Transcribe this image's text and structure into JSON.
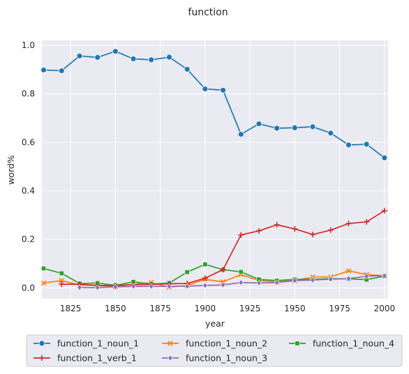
{
  "chart_data": {
    "type": "line",
    "title": "function",
    "xlabel": "year",
    "ylabel": "word%",
    "xlim": [
      1809,
      2002
    ],
    "ylim": [
      -0.045,
      1.02
    ],
    "x_ticks": [
      1825,
      1850,
      1875,
      1900,
      1925,
      1950,
      1975,
      2000
    ],
    "y_ticks": [
      0.0,
      0.2,
      0.4,
      0.6,
      0.8,
      1.0
    ],
    "grid": true,
    "legend_position": "bottom",
    "series": [
      {
        "name": "function_1_noun_1",
        "color": "#1f77b4",
        "marker": "circle",
        "x": [
          1810,
          1820,
          1830,
          1840,
          1850,
          1860,
          1870,
          1880,
          1890,
          1900,
          1910,
          1920,
          1930,
          1940,
          1950,
          1960,
          1970,
          1980,
          1990,
          2000
        ],
        "y": [
          0.898,
          0.895,
          0.956,
          0.95,
          0.975,
          0.944,
          0.94,
          0.951,
          0.901,
          0.82,
          0.815,
          0.633,
          0.676,
          0.658,
          0.66,
          0.664,
          0.638,
          0.589,
          0.592,
          0.536
        ]
      },
      {
        "name": "function_1_noun_2",
        "color": "#ff7f0e",
        "marker": "x",
        "x": [
          1810,
          1820,
          1830,
          1840,
          1850,
          1860,
          1870,
          1880,
          1890,
          1900,
          1910,
          1920,
          1930,
          1940,
          1950,
          1960,
          1970,
          1980,
          1990,
          2000
        ],
        "y": [
          0.02,
          0.03,
          0.012,
          0.01,
          0.005,
          0.015,
          0.022,
          0.003,
          0.01,
          0.035,
          0.025,
          0.055,
          0.03,
          0.025,
          0.03,
          0.045,
          0.045,
          0.07,
          0.055,
          0.05
        ]
      },
      {
        "name": "function_1_noun_4",
        "color": "#2ca02c",
        "marker": "square",
        "x": [
          1810,
          1820,
          1830,
          1840,
          1850,
          1860,
          1870,
          1880,
          1890,
          1900,
          1910,
          1920,
          1930,
          1940,
          1950,
          1960,
          1970,
          1980,
          1990,
          2000
        ],
        "y": [
          0.08,
          0.06,
          0.018,
          0.02,
          0.01,
          0.025,
          0.015,
          0.02,
          0.065,
          0.097,
          0.075,
          0.066,
          0.035,
          0.03,
          0.035,
          0.035,
          0.038,
          0.037,
          0.034,
          0.048
        ]
      },
      {
        "name": "function_1_verb_1",
        "color": "#d62728",
        "marker": "plus",
        "x": [
          1820,
          1830,
          1840,
          1850,
          1860,
          1870,
          1880,
          1890,
          1900,
          1910,
          1920,
          1930,
          1940,
          1950,
          1960,
          1970,
          1980,
          1990,
          2000
        ],
        "y": [
          0.015,
          0.015,
          0.01,
          0.01,
          0.013,
          0.014,
          0.017,
          0.018,
          0.04,
          0.075,
          0.218,
          0.235,
          0.26,
          0.243,
          0.22,
          0.238,
          0.265,
          0.272,
          0.318
        ]
      },
      {
        "name": "function_1_noun_3",
        "color": "#9467bd",
        "marker": "diamond",
        "x": [
          1830,
          1840,
          1850,
          1860,
          1870,
          1880,
          1890,
          1900,
          1910,
          1920,
          1930,
          1940,
          1950,
          1960,
          1970,
          1980,
          1990,
          2000
        ],
        "y": [
          0.002,
          0.001,
          0.004,
          0.006,
          0.006,
          0.006,
          0.007,
          0.01,
          0.012,
          0.022,
          0.02,
          0.022,
          0.03,
          0.032,
          0.036,
          0.038,
          0.048,
          0.05
        ]
      }
    ],
    "legend_order": [
      "function_1_noun_1",
      "function_1_noun_2",
      "function_1_noun_4",
      "function_1_verb_1",
      "function_1_noun_3"
    ]
  }
}
